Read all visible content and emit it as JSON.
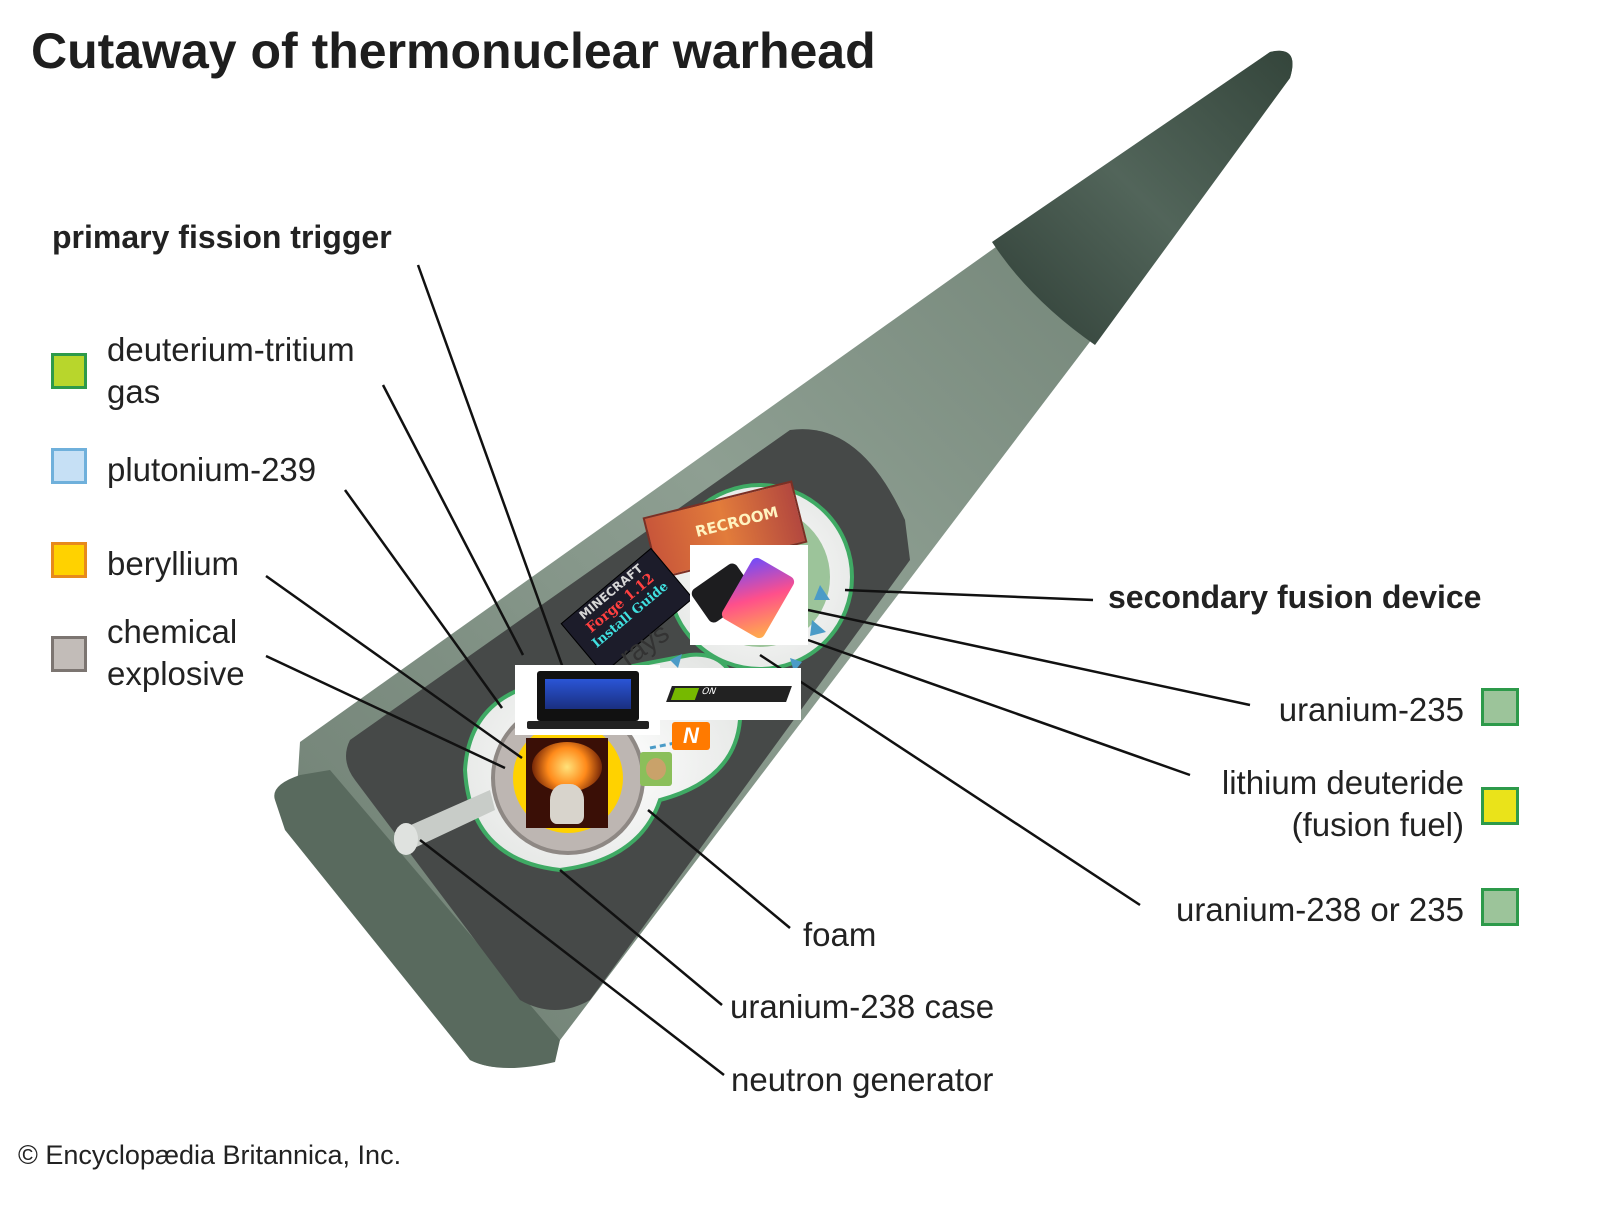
{
  "title": "Cutaway of thermonuclear warhead",
  "copyright": "© Encyclopædia Britannica, Inc.",
  "labels": {
    "primary_fission_trigger": "primary fission trigger",
    "deuterium_tritium_line1": "deuterium-tritium",
    "deuterium_tritium_line2": "gas",
    "plutonium_239": "plutonium-239",
    "beryllium": "beryllium",
    "chemical_explosive_line1": "chemical",
    "chemical_explosive_line2": "explosive",
    "secondary_fusion_device": "secondary fusion device",
    "uranium_235": "uranium-235",
    "lithium_deuteride_line1": "lithium deuteride",
    "lithium_deuteride_line2": "(fusion fuel)",
    "uranium_238_or_235": "uranium-238 or 235",
    "foam": "foam",
    "uranium_238_case": "uranium-238 case",
    "neutron_generator": "neutron generator",
    "rays_fragment": "rays"
  },
  "overlay_text": {
    "minecraft_line1": "MINECRAFT",
    "minecraft_line2": "Forge 1.12",
    "minecraft_line3": "Install Guide",
    "game_banner": "RECROOM",
    "gpu_card": "ON"
  },
  "colors": {
    "deuterium_tritium": "#b8d62c",
    "plutonium_239": "#c6e0f5",
    "beryllium": "#ffd200",
    "chemical_explosive": "#c2bcb8",
    "uranium_235": "#9cc49a",
    "lithium_deuteride": "#eae31a",
    "uranium_238_or_235": "#9cc49a",
    "casing": "#6e7f72",
    "interior_dark": "#474a49",
    "fusion_border": "#3faa64",
    "arrow": "#4b9bc7"
  },
  "icons": [
    "laptop-image",
    "smartphone-image",
    "cat-explosion-image",
    "minecraft-forge-image",
    "game-banner-image",
    "gpu-card-image",
    "orange-n-logo",
    "hamster-sticker"
  ]
}
